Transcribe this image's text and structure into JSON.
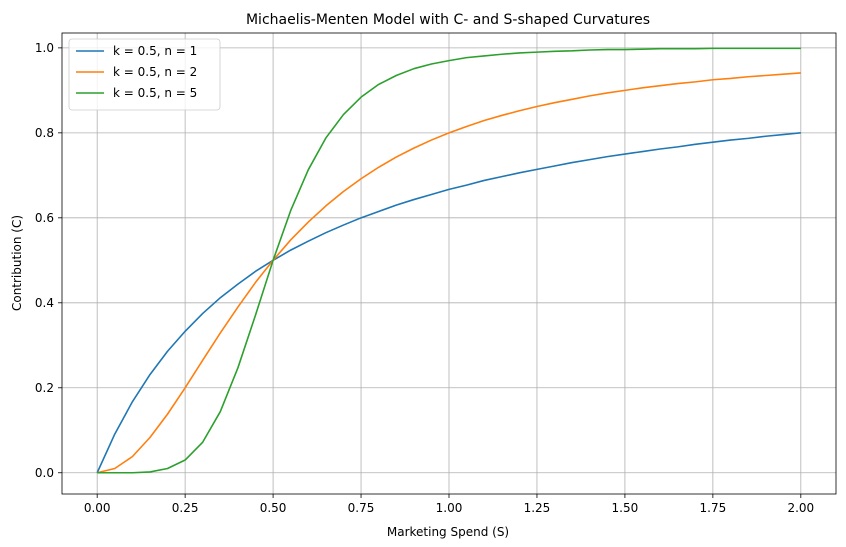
{
  "chart_data": {
    "type": "line",
    "title": "Michaelis-Menten Model with C- and S-shaped Curvatures",
    "xlabel": "Marketing Spend (S)",
    "ylabel": "Contribution (C)",
    "xlim": [
      -0.1,
      2.1
    ],
    "ylim": [
      -0.05,
      1.035
    ],
    "xticks": [
      0.0,
      0.25,
      0.5,
      0.75,
      1.0,
      1.25,
      1.5,
      1.75,
      2.0
    ],
    "xtick_labels": [
      "0.00",
      "0.25",
      "0.50",
      "0.75",
      "1.00",
      "1.25",
      "1.50",
      "1.75",
      "2.00"
    ],
    "yticks": [
      0.0,
      0.2,
      0.4,
      0.6,
      0.8,
      1.0
    ],
    "ytick_labels": [
      "0.0",
      "0.2",
      "0.4",
      "0.6",
      "0.8",
      "1.0"
    ],
    "grid": true,
    "legend": "top-left",
    "x": [
      0.0,
      0.05,
      0.1,
      0.15,
      0.2,
      0.25,
      0.3,
      0.35,
      0.4,
      0.45,
      0.5,
      0.55,
      0.6,
      0.65,
      0.7,
      0.75,
      0.8,
      0.85,
      0.9,
      0.95,
      1.0,
      1.05,
      1.1,
      1.15,
      1.2,
      1.25,
      1.3,
      1.35,
      1.4,
      1.45,
      1.5,
      1.55,
      1.6,
      1.65,
      1.7,
      1.75,
      1.8,
      1.85,
      1.9,
      1.95,
      2.0
    ],
    "series": [
      {
        "name": "k = 0.5, n = 1",
        "color": "#1f77b4",
        "values": [
          0.0,
          0.091,
          0.167,
          0.231,
          0.286,
          0.333,
          0.375,
          0.412,
          0.444,
          0.474,
          0.5,
          0.524,
          0.545,
          0.565,
          0.583,
          0.6,
          0.615,
          0.63,
          0.643,
          0.655,
          0.667,
          0.677,
          0.688,
          0.697,
          0.706,
          0.714,
          0.722,
          0.73,
          0.737,
          0.744,
          0.75,
          0.756,
          0.762,
          0.767,
          0.773,
          0.778,
          0.783,
          0.787,
          0.792,
          0.796,
          0.8
        ]
      },
      {
        "name": "k = 0.5, n = 2",
        "color": "#ff7f0e",
        "values": [
          0.0,
          0.01,
          0.038,
          0.083,
          0.138,
          0.2,
          0.265,
          0.329,
          0.39,
          0.448,
          0.5,
          0.548,
          0.59,
          0.628,
          0.662,
          0.692,
          0.719,
          0.743,
          0.764,
          0.783,
          0.8,
          0.815,
          0.829,
          0.841,
          0.852,
          0.862,
          0.871,
          0.879,
          0.887,
          0.894,
          0.9,
          0.906,
          0.911,
          0.916,
          0.92,
          0.925,
          0.928,
          0.932,
          0.935,
          0.938,
          0.941
        ]
      },
      {
        "name": "k = 0.5, n = 5",
        "color": "#2ca02c",
        "values": [
          0.0,
          0.0,
          0.0,
          0.002,
          0.01,
          0.03,
          0.072,
          0.144,
          0.247,
          0.371,
          0.5,
          0.617,
          0.713,
          0.788,
          0.843,
          0.884,
          0.914,
          0.935,
          0.951,
          0.962,
          0.97,
          0.977,
          0.981,
          0.985,
          0.988,
          0.99,
          0.992,
          0.993,
          0.995,
          0.996,
          0.996,
          0.997,
          0.998,
          0.998,
          0.998,
          0.999,
          0.999,
          0.999,
          0.999,
          0.999,
          0.999
        ]
      }
    ]
  }
}
